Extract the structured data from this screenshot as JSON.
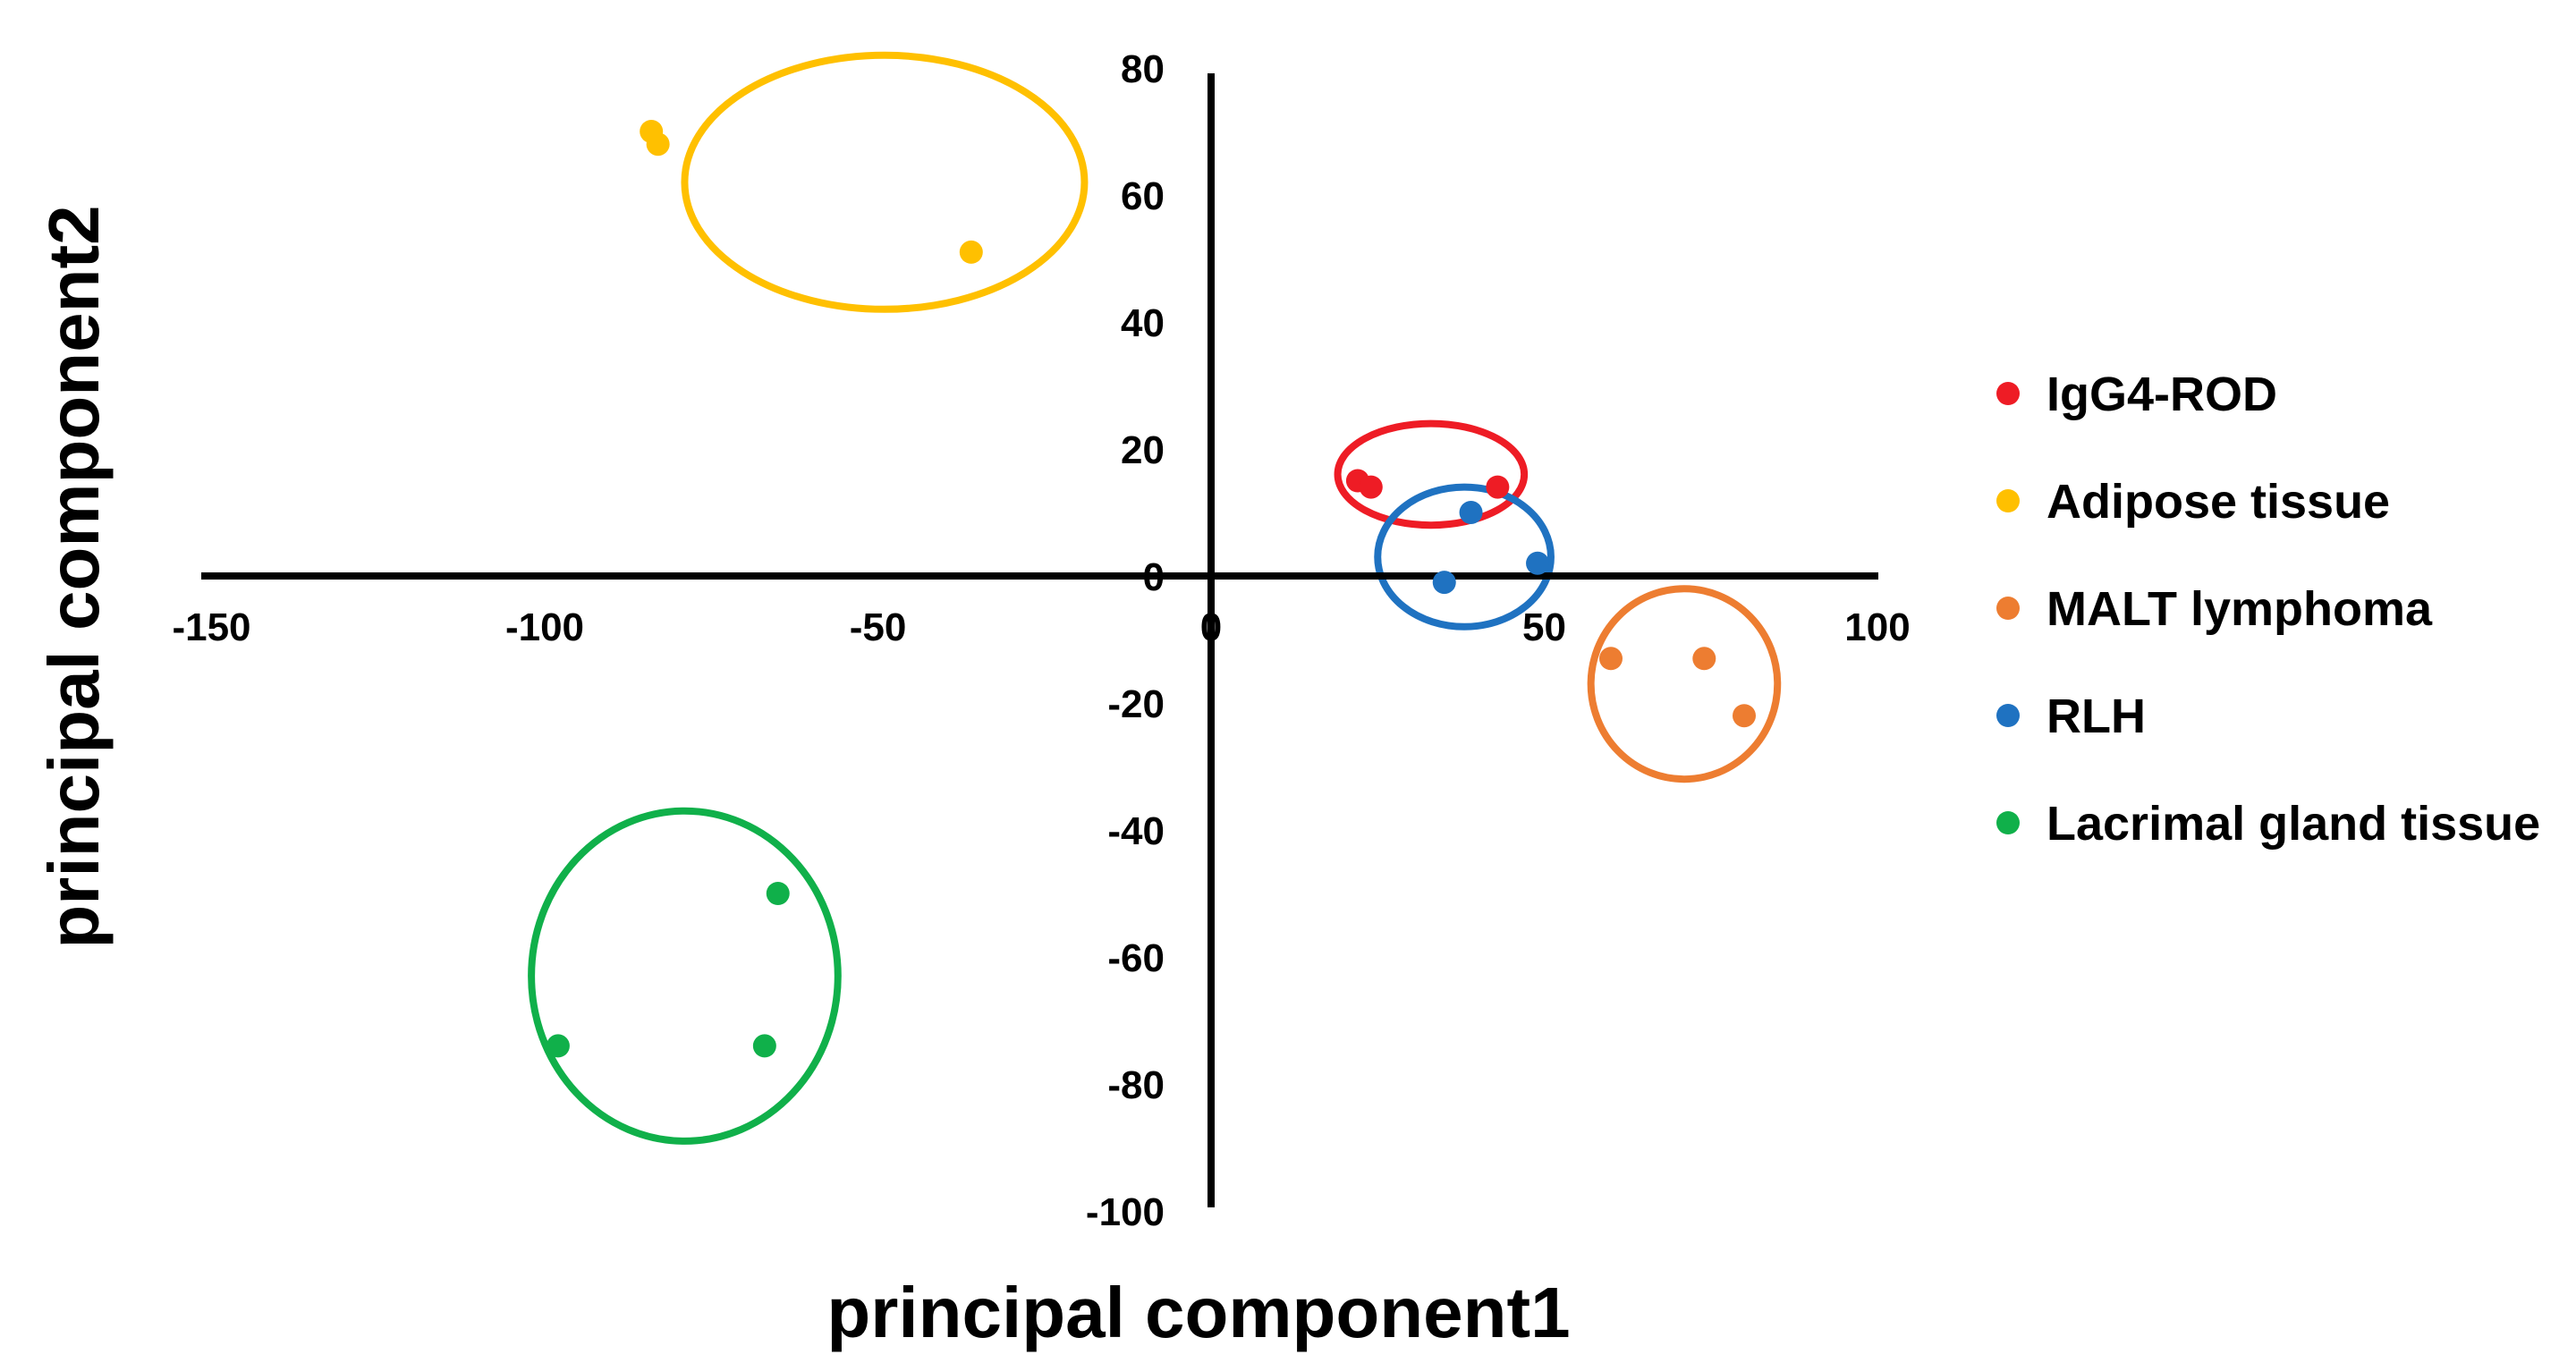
{
  "chart_data": {
    "type": "scatter",
    "title": "",
    "xlabel": "principal component1",
    "ylabel": "principal component2",
    "xlim": [
      -150,
      100
    ],
    "ylim": [
      -100,
      80
    ],
    "x_ticks": [
      -150,
      -100,
      -50,
      0,
      50,
      100
    ],
    "y_ticks": [
      80,
      60,
      40,
      20,
      0,
      -20,
      -40,
      -60,
      -80,
      -100
    ],
    "x_tick_labels": [
      "-150",
      "-100",
      "-50",
      "0",
      "50",
      "100"
    ],
    "y_tick_labels": [
      "80",
      "60",
      "40",
      "20",
      "0",
      "-20",
      "-40",
      "-60",
      "-80",
      "-100"
    ],
    "grid": false,
    "legend_position": "right",
    "series": [
      {
        "name": "IgG4-ROD",
        "color": "#ee1c25",
        "points": [
          [
            22,
            15
          ],
          [
            24,
            14
          ],
          [
            43,
            14
          ]
        ],
        "ellipse": {
          "cx": 33,
          "cy": 16,
          "rx": 14,
          "ry": 8
        }
      },
      {
        "name": "Adipose tissue",
        "color": "#ffc000",
        "points": [
          [
            -84,
            70
          ],
          [
            -83,
            68
          ],
          [
            -36,
            51
          ]
        ],
        "ellipse": {
          "cx": -49,
          "cy": 62,
          "rx": 30,
          "ry": 20
        }
      },
      {
        "name": "MALT lymphoma",
        "color": "#ed7d31",
        "points": [
          [
            60,
            -13
          ],
          [
            74,
            -13
          ],
          [
            80,
            -22
          ]
        ],
        "ellipse": {
          "cx": 71,
          "cy": -17,
          "rx": 14,
          "ry": 15
        }
      },
      {
        "name": "RLH",
        "color": "#1f72c1",
        "points": [
          [
            39,
            10
          ],
          [
            35,
            -1
          ],
          [
            49,
            2
          ]
        ],
        "ellipse": {
          "cx": 38,
          "cy": 3,
          "rx": 13,
          "ry": 11
        }
      },
      {
        "name": "Lacrimal gland tissue",
        "color": "#10b04a",
        "points": [
          [
            -65,
            -50
          ],
          [
            -98,
            -74
          ],
          [
            -67,
            -74
          ]
        ],
        "ellipse": {
          "cx": -79,
          "cy": -63,
          "rx": 23,
          "ry": 26
        }
      }
    ]
  }
}
